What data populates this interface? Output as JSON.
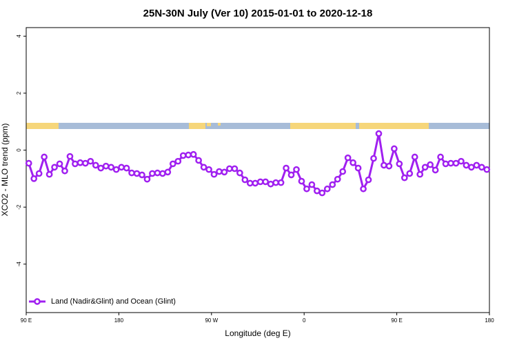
{
  "chart_data": {
    "type": "line",
    "title": "25N-30N July (Ver 10)   2015-01-01 to 2020-12-18",
    "x_label": "Longitude (deg E)",
    "y_label": "XCO2 - MLO trend (ppm)",
    "xlim": [
      90,
      540
    ],
    "xticks": [
      {
        "value": 90,
        "label": "90 E"
      },
      180,
      {
        "value": 270,
        "label": "90 W"
      },
      {
        "value": 360,
        "label": "0"
      },
      {
        "value": 450,
        "label": "90 E"
      },
      {
        "value": 540,
        "label": "180"
      }
    ],
    "ylim": [
      -5.7,
      4.3
    ],
    "yticks": [
      -4,
      -2,
      0,
      2,
      4
    ],
    "legend_position": "bottom-left",
    "x": [
      92.5,
      97.5,
      102.5,
      107.5,
      112.5,
      117.5,
      122.5,
      127.5,
      132.5,
      137.5,
      142.5,
      147.5,
      152.5,
      157.5,
      162.5,
      167.5,
      172.5,
      177.5,
      182.5,
      187.5,
      192.5,
      197.5,
      202.5,
      207.5,
      212.5,
      217.5,
      222.5,
      227.5,
      232.5,
      237.5,
      242.5,
      247.5,
      252.5,
      257.5,
      262.5,
      267.5,
      272.5,
      277.5,
      282.5,
      287.5,
      292.5,
      297.5,
      302.5,
      307.5,
      312.5,
      317.5,
      322.5,
      327.5,
      332.5,
      337.5,
      342.5,
      347.5,
      352.5,
      357.5,
      362.5,
      367.5,
      372.5,
      377.5,
      382.5,
      387.5,
      392.5,
      397.5,
      402.5,
      407.5,
      412.5,
      417.5,
      422.5,
      427.5,
      432.5,
      437.5,
      442.5,
      447.5,
      452.5,
      457.5,
      462.5,
      467.5,
      472.5,
      477.5,
      482.5,
      487.5,
      492.5,
      497.5,
      502.5,
      507.5,
      512.5,
      517.5,
      522.5,
      527.5,
      532.5,
      537.5
    ],
    "series": [
      {
        "name": "Land (Nadir&Glint) and Ocean (Glint)",
        "color": "#a020f0",
        "values": [
          -0.46,
          -1.0,
          -0.82,
          -0.24,
          -0.85,
          -0.6,
          -0.48,
          -0.73,
          -0.22,
          -0.48,
          -0.44,
          -0.46,
          -0.39,
          -0.53,
          -0.63,
          -0.56,
          -0.6,
          -0.68,
          -0.6,
          -0.63,
          -0.8,
          -0.82,
          -0.87,
          -1.02,
          -0.82,
          -0.8,
          -0.82,
          -0.77,
          -0.48,
          -0.39,
          -0.19,
          -0.17,
          -0.15,
          -0.36,
          -0.6,
          -0.68,
          -0.85,
          -0.75,
          -0.77,
          -0.65,
          -0.65,
          -0.8,
          -1.04,
          -1.16,
          -1.16,
          -1.11,
          -1.11,
          -1.19,
          -1.14,
          -1.14,
          -0.63,
          -0.87,
          -0.68,
          -1.09,
          -1.36,
          -1.21,
          -1.43,
          -1.5,
          -1.36,
          -1.21,
          -1.02,
          -0.75,
          -0.27,
          -0.44,
          -0.63,
          -1.36,
          -1.04,
          -0.29,
          0.58,
          -0.53,
          -0.56,
          0.05,
          -0.48,
          -0.97,
          -0.82,
          -0.24,
          -0.85,
          -0.6,
          -0.51,
          -0.7,
          -0.24,
          -0.48,
          -0.46,
          -0.46,
          -0.39,
          -0.53,
          -0.6,
          -0.53,
          -0.6,
          -0.68
        ]
      }
    ]
  }
}
